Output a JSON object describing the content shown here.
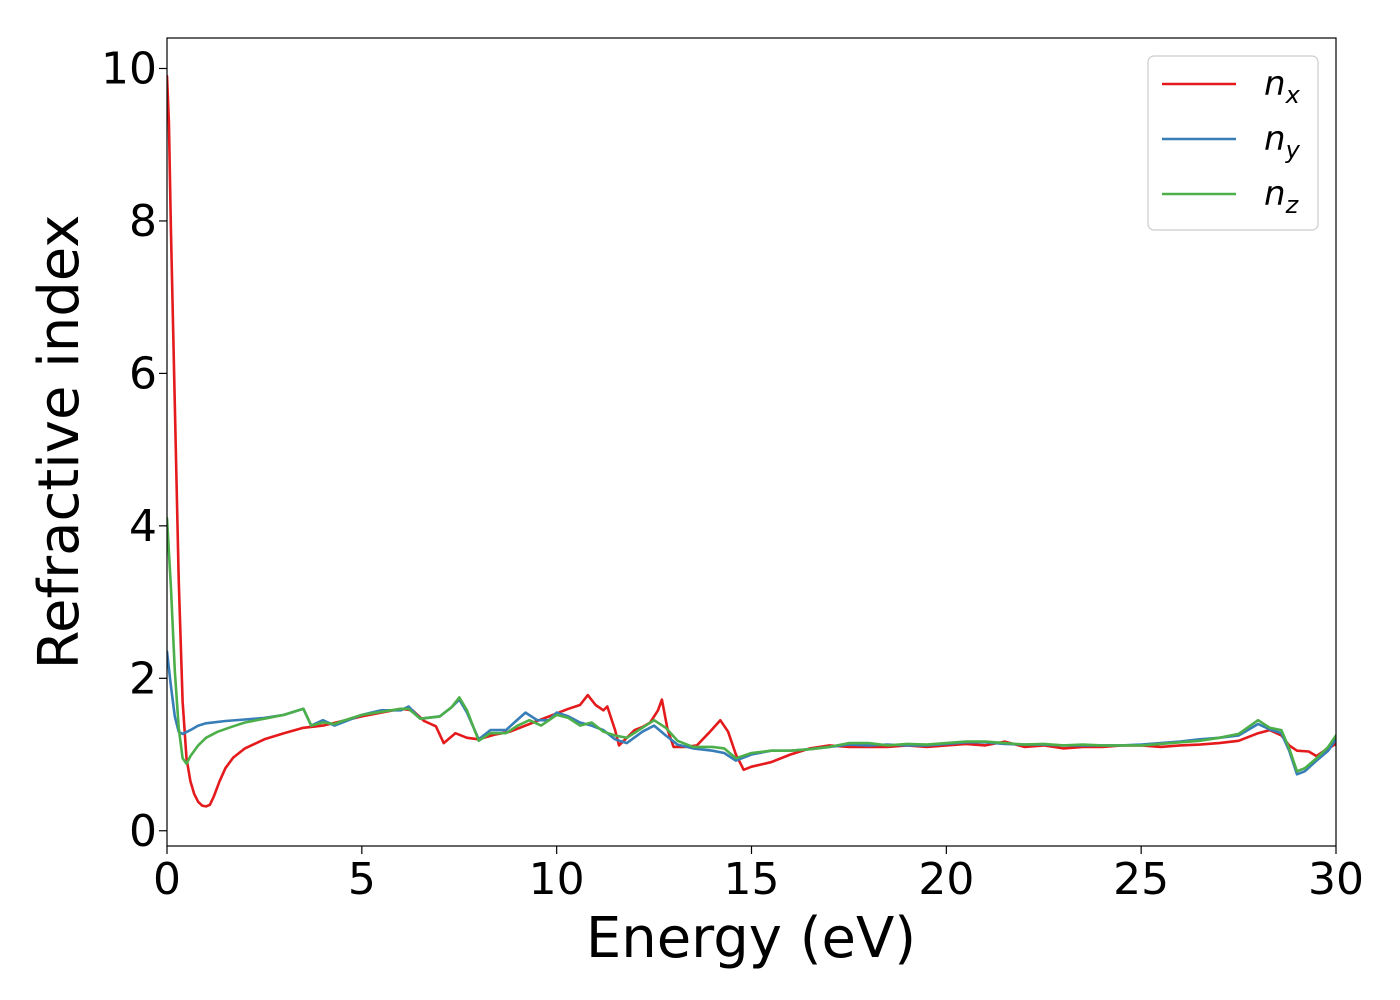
{
  "chart_data": {
    "type": "line",
    "xlabel": "Energy (eV)",
    "ylabel": "Refractive index",
    "xlim": [
      0,
      30
    ],
    "ylim": [
      -0.2,
      10.4
    ],
    "xticks": [
      "0",
      "5",
      "10",
      "15",
      "20",
      "25",
      "30"
    ],
    "yticks": [
      "0",
      "2",
      "4",
      "6",
      "8",
      "10"
    ],
    "legend_position": "top-right",
    "grid": false,
    "series": [
      {
        "name": "n_x",
        "label_main": "n",
        "label_sub": "x",
        "color": "#e41a1c",
        "points": [
          [
            0,
            9.9
          ],
          [
            0.05,
            9.3
          ],
          [
            0.1,
            7.9
          ],
          [
            0.2,
            5.6
          ],
          [
            0.3,
            3.3
          ],
          [
            0.4,
            1.7
          ],
          [
            0.5,
            0.95
          ],
          [
            0.6,
            0.65
          ],
          [
            0.7,
            0.48
          ],
          [
            0.8,
            0.38
          ],
          [
            0.9,
            0.33
          ],
          [
            1.0,
            0.32
          ],
          [
            1.1,
            0.34
          ],
          [
            1.2,
            0.45
          ],
          [
            1.35,
            0.65
          ],
          [
            1.5,
            0.82
          ],
          [
            1.7,
            0.96
          ],
          [
            2.0,
            1.08
          ],
          [
            2.5,
            1.2
          ],
          [
            3.0,
            1.28
          ],
          [
            3.5,
            1.35
          ],
          [
            4.0,
            1.38
          ],
          [
            4.5,
            1.44
          ],
          [
            5.0,
            1.5
          ],
          [
            5.5,
            1.55
          ],
          [
            6.0,
            1.6
          ],
          [
            6.3,
            1.58
          ],
          [
            6.6,
            1.44
          ],
          [
            6.9,
            1.37
          ],
          [
            7.1,
            1.15
          ],
          [
            7.4,
            1.28
          ],
          [
            7.7,
            1.22
          ],
          [
            8.0,
            1.2
          ],
          [
            8.4,
            1.26
          ],
          [
            8.8,
            1.3
          ],
          [
            9.3,
            1.4
          ],
          [
            9.8,
            1.5
          ],
          [
            10.3,
            1.6
          ],
          [
            10.6,
            1.65
          ],
          [
            10.8,
            1.78
          ],
          [
            11.0,
            1.65
          ],
          [
            11.2,
            1.58
          ],
          [
            11.3,
            1.63
          ],
          [
            11.5,
            1.32
          ],
          [
            11.6,
            1.12
          ],
          [
            11.8,
            1.22
          ],
          [
            12.0,
            1.32
          ],
          [
            12.2,
            1.36
          ],
          [
            12.4,
            1.42
          ],
          [
            12.6,
            1.58
          ],
          [
            12.7,
            1.72
          ],
          [
            12.85,
            1.32
          ],
          [
            13.0,
            1.1
          ],
          [
            13.3,
            1.1
          ],
          [
            13.6,
            1.12
          ],
          [
            13.9,
            1.28
          ],
          [
            14.2,
            1.45
          ],
          [
            14.4,
            1.3
          ],
          [
            14.6,
            1.0
          ],
          [
            14.8,
            0.8
          ],
          [
            15.0,
            0.84
          ],
          [
            15.5,
            0.9
          ],
          [
            16.0,
            1.0
          ],
          [
            16.5,
            1.08
          ],
          [
            17.0,
            1.12
          ],
          [
            17.5,
            1.1
          ],
          [
            18.0,
            1.1
          ],
          [
            18.5,
            1.1
          ],
          [
            19.0,
            1.12
          ],
          [
            19.5,
            1.1
          ],
          [
            20.0,
            1.12
          ],
          [
            20.5,
            1.14
          ],
          [
            21.0,
            1.12
          ],
          [
            21.5,
            1.17
          ],
          [
            22.0,
            1.1
          ],
          [
            22.5,
            1.12
          ],
          [
            23.0,
            1.08
          ],
          [
            23.5,
            1.1
          ],
          [
            24.0,
            1.1
          ],
          [
            24.5,
            1.12
          ],
          [
            25.0,
            1.12
          ],
          [
            25.5,
            1.1
          ],
          [
            26.0,
            1.12
          ],
          [
            26.5,
            1.13
          ],
          [
            27.0,
            1.15
          ],
          [
            27.5,
            1.18
          ],
          [
            28.0,
            1.28
          ],
          [
            28.3,
            1.32
          ],
          [
            28.6,
            1.25
          ],
          [
            28.8,
            1.12
          ],
          [
            29.0,
            1.05
          ],
          [
            29.3,
            1.04
          ],
          [
            29.5,
            0.98
          ],
          [
            29.7,
            1.05
          ],
          [
            30.0,
            1.14
          ]
        ]
      },
      {
        "name": "n_y",
        "label_main": "n",
        "label_sub": "y",
        "color": "#377eb8",
        "points": [
          [
            0,
            2.35
          ],
          [
            0.1,
            1.9
          ],
          [
            0.2,
            1.5
          ],
          [
            0.3,
            1.3
          ],
          [
            0.4,
            1.27
          ],
          [
            0.6,
            1.32
          ],
          [
            0.8,
            1.38
          ],
          [
            1.0,
            1.41
          ],
          [
            1.5,
            1.44
          ],
          [
            2.0,
            1.46
          ],
          [
            2.5,
            1.48
          ],
          [
            3.0,
            1.52
          ],
          [
            3.5,
            1.6
          ],
          [
            3.7,
            1.38
          ],
          [
            4.0,
            1.45
          ],
          [
            4.3,
            1.38
          ],
          [
            4.5,
            1.42
          ],
          [
            5.0,
            1.52
          ],
          [
            5.5,
            1.58
          ],
          [
            6.0,
            1.58
          ],
          [
            6.2,
            1.63
          ],
          [
            6.5,
            1.47
          ],
          [
            7.0,
            1.5
          ],
          [
            7.3,
            1.62
          ],
          [
            7.5,
            1.72
          ],
          [
            7.7,
            1.55
          ],
          [
            8.0,
            1.2
          ],
          [
            8.3,
            1.32
          ],
          [
            8.7,
            1.32
          ],
          [
            9.0,
            1.46
          ],
          [
            9.2,
            1.55
          ],
          [
            9.5,
            1.45
          ],
          [
            9.8,
            1.45
          ],
          [
            10.0,
            1.55
          ],
          [
            10.3,
            1.5
          ],
          [
            10.6,
            1.42
          ],
          [
            10.9,
            1.38
          ],
          [
            11.2,
            1.32
          ],
          [
            11.5,
            1.2
          ],
          [
            11.8,
            1.15
          ],
          [
            12.2,
            1.3
          ],
          [
            12.5,
            1.38
          ],
          [
            12.8,
            1.25
          ],
          [
            13.1,
            1.13
          ],
          [
            13.5,
            1.08
          ],
          [
            14.0,
            1.05
          ],
          [
            14.3,
            1.02
          ],
          [
            14.6,
            0.92
          ],
          [
            15.0,
            1.0
          ],
          [
            15.5,
            1.05
          ],
          [
            16.0,
            1.05
          ],
          [
            16.5,
            1.07
          ],
          [
            17.0,
            1.1
          ],
          [
            17.5,
            1.13
          ],
          [
            18.0,
            1.12
          ],
          [
            18.5,
            1.13
          ],
          [
            19.0,
            1.12
          ],
          [
            19.5,
            1.12
          ],
          [
            20.0,
            1.14
          ],
          [
            20.5,
            1.16
          ],
          [
            21.0,
            1.16
          ],
          [
            21.5,
            1.14
          ],
          [
            22.0,
            1.13
          ],
          [
            22.5,
            1.13
          ],
          [
            23.0,
            1.12
          ],
          [
            23.5,
            1.12
          ],
          [
            24.0,
            1.12
          ],
          [
            24.5,
            1.12
          ],
          [
            25.0,
            1.13
          ],
          [
            25.5,
            1.15
          ],
          [
            26.0,
            1.17
          ],
          [
            26.5,
            1.2
          ],
          [
            27.0,
            1.22
          ],
          [
            27.5,
            1.25
          ],
          [
            28.0,
            1.4
          ],
          [
            28.3,
            1.33
          ],
          [
            28.6,
            1.28
          ],
          [
            28.8,
            1.05
          ],
          [
            29.0,
            0.74
          ],
          [
            29.2,
            0.78
          ],
          [
            29.5,
            0.92
          ],
          [
            29.8,
            1.05
          ],
          [
            30.0,
            1.2
          ]
        ]
      },
      {
        "name": "n_z",
        "label_main": "n",
        "label_sub": "z",
        "color": "#4daf4a",
        "points": [
          [
            0,
            4.1
          ],
          [
            0.1,
            3.2
          ],
          [
            0.2,
            2.1
          ],
          [
            0.3,
            1.35
          ],
          [
            0.4,
            0.95
          ],
          [
            0.5,
            0.88
          ],
          [
            0.6,
            0.98
          ],
          [
            0.8,
            1.12
          ],
          [
            1.0,
            1.22
          ],
          [
            1.3,
            1.3
          ],
          [
            1.7,
            1.37
          ],
          [
            2.0,
            1.42
          ],
          [
            2.5,
            1.47
          ],
          [
            3.0,
            1.52
          ],
          [
            3.5,
            1.6
          ],
          [
            3.7,
            1.38
          ],
          [
            4.0,
            1.42
          ],
          [
            4.3,
            1.4
          ],
          [
            4.5,
            1.44
          ],
          [
            5.0,
            1.52
          ],
          [
            5.5,
            1.56
          ],
          [
            6.0,
            1.6
          ],
          [
            6.2,
            1.6
          ],
          [
            6.5,
            1.47
          ],
          [
            7.0,
            1.5
          ],
          [
            7.3,
            1.62
          ],
          [
            7.5,
            1.75
          ],
          [
            7.7,
            1.58
          ],
          [
            8.0,
            1.18
          ],
          [
            8.3,
            1.28
          ],
          [
            8.7,
            1.28
          ],
          [
            9.0,
            1.38
          ],
          [
            9.3,
            1.45
          ],
          [
            9.6,
            1.38
          ],
          [
            10.0,
            1.52
          ],
          [
            10.3,
            1.48
          ],
          [
            10.6,
            1.38
          ],
          [
            10.9,
            1.42
          ],
          [
            11.2,
            1.3
          ],
          [
            11.5,
            1.25
          ],
          [
            11.8,
            1.22
          ],
          [
            12.2,
            1.35
          ],
          [
            12.5,
            1.45
          ],
          [
            12.8,
            1.35
          ],
          [
            13.1,
            1.18
          ],
          [
            13.5,
            1.1
          ],
          [
            14.0,
            1.1
          ],
          [
            14.3,
            1.08
          ],
          [
            14.6,
            0.95
          ],
          [
            15.0,
            1.02
          ],
          [
            15.5,
            1.05
          ],
          [
            16.0,
            1.05
          ],
          [
            16.5,
            1.07
          ],
          [
            17.0,
            1.1
          ],
          [
            17.5,
            1.15
          ],
          [
            18.0,
            1.15
          ],
          [
            18.5,
            1.12
          ],
          [
            19.0,
            1.14
          ],
          [
            19.5,
            1.13
          ],
          [
            20.0,
            1.15
          ],
          [
            20.5,
            1.17
          ],
          [
            21.0,
            1.17
          ],
          [
            21.5,
            1.15
          ],
          [
            22.0,
            1.13
          ],
          [
            22.5,
            1.14
          ],
          [
            23.0,
            1.12
          ],
          [
            23.5,
            1.13
          ],
          [
            24.0,
            1.12
          ],
          [
            24.5,
            1.12
          ],
          [
            25.0,
            1.12
          ],
          [
            25.5,
            1.14
          ],
          [
            26.0,
            1.16
          ],
          [
            26.5,
            1.18
          ],
          [
            27.0,
            1.22
          ],
          [
            27.5,
            1.27
          ],
          [
            28.0,
            1.45
          ],
          [
            28.3,
            1.35
          ],
          [
            28.6,
            1.32
          ],
          [
            28.8,
            1.08
          ],
          [
            29.0,
            0.78
          ],
          [
            29.2,
            0.82
          ],
          [
            29.5,
            0.95
          ],
          [
            29.8,
            1.1
          ],
          [
            30.0,
            1.25
          ]
        ]
      }
    ]
  }
}
